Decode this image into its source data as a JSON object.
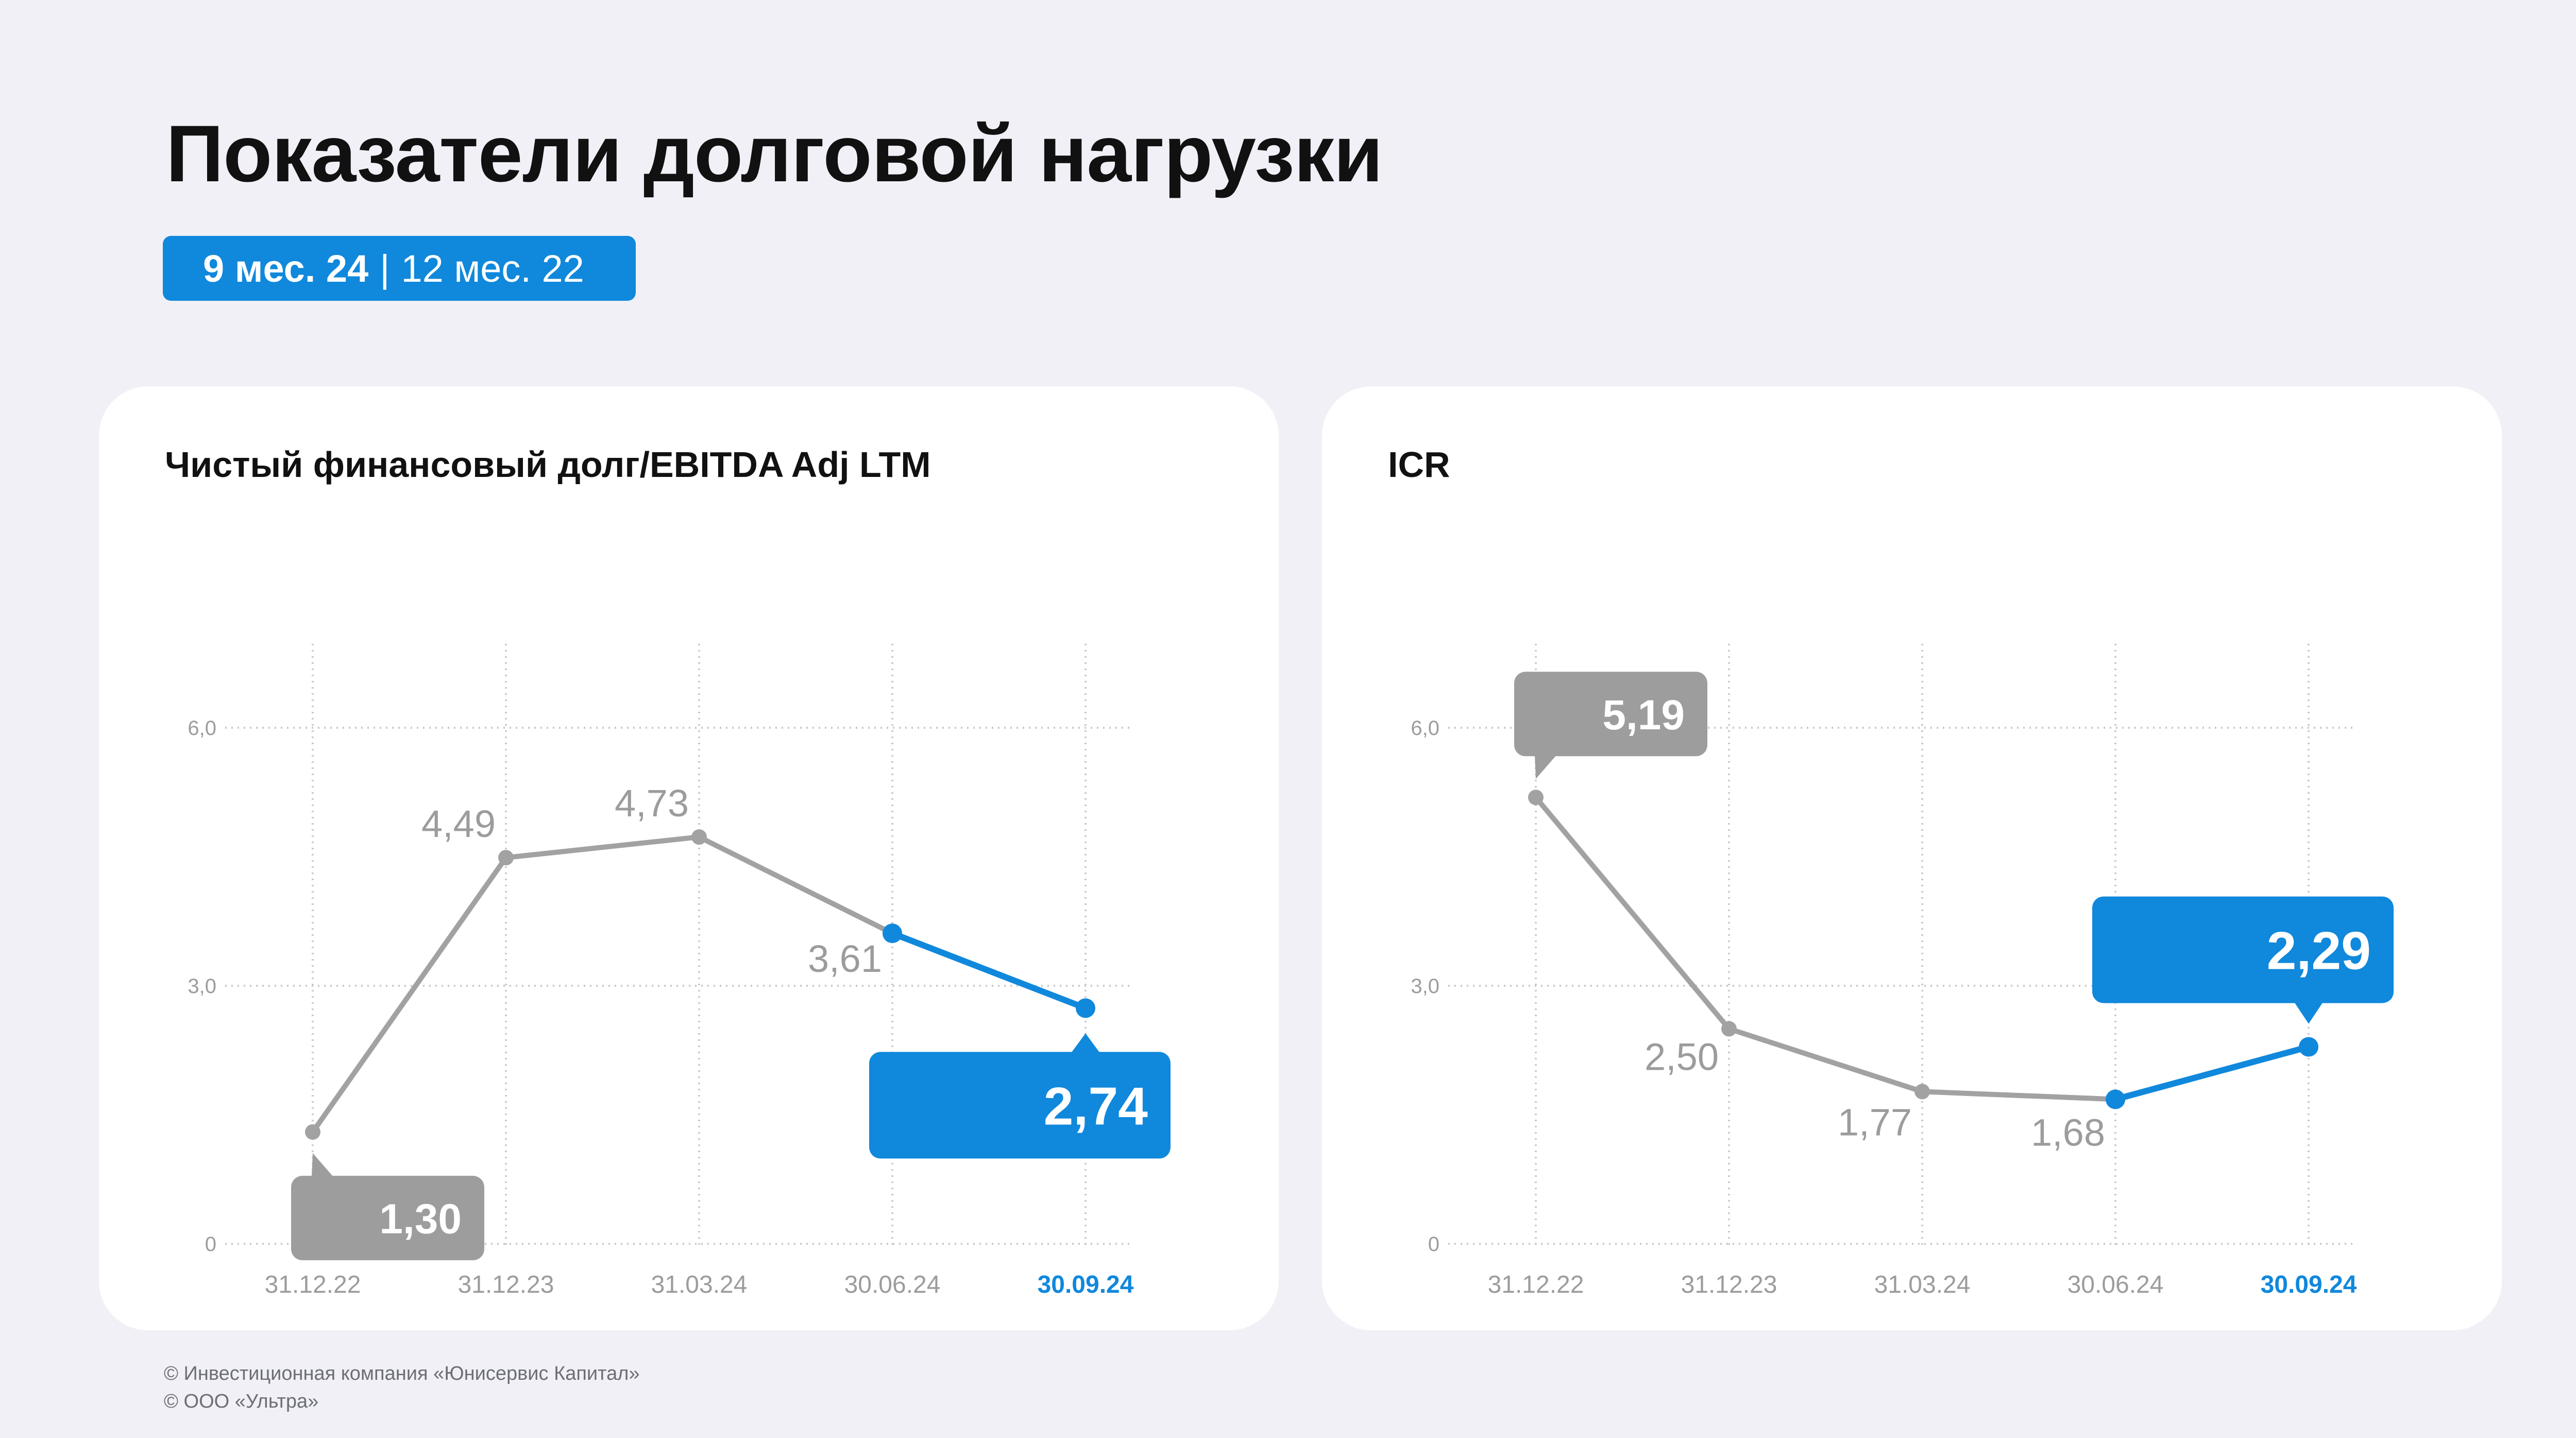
{
  "page": {
    "title": "Показатели долговой нагрузки",
    "period_current": "9 мес. 24",
    "period_separator": "|",
    "period_previous": "12 мес. 22"
  },
  "colors": {
    "background": "#f0f0f6",
    "accent_blue": "#1088dc",
    "line_gray": "#a2a2a2",
    "label_gray": "#9c9c9c",
    "callout_gray": "#9d9d9d",
    "grid": "#c9c9cf"
  },
  "footer": {
    "line1": "© Инвестиционная компания «Юнисервис Капитал»",
    "line2": "© ООО «Ультра»"
  },
  "chart_data": [
    {
      "type": "line",
      "title": "Чистый финансовый долг/EBITDA Adj LTM",
      "categories": [
        "31.12.22",
        "31.12.23",
        "31.03.24",
        "30.06.24",
        "30.09.24"
      ],
      "values": [
        1.3,
        4.49,
        4.73,
        3.61,
        2.74
      ],
      "value_labels": [
        "1,30",
        "4,49",
        "4,73",
        "3,61",
        "2,74"
      ],
      "yticks": [
        0,
        3.0,
        6.0
      ],
      "ytick_labels": [
        "0",
        "3,0",
        "6,0"
      ],
      "ylim": [
        0,
        7.0
      ],
      "xlabel": "",
      "ylabel": "",
      "grid": true,
      "highlighted_category": "30.09.24",
      "callouts": [
        {
          "index": 0,
          "style": "gray",
          "position": "below"
        },
        {
          "index": 4,
          "style": "blue",
          "position": "below"
        }
      ],
      "blue_segment_from_index": 3
    },
    {
      "type": "line",
      "title": "ICR",
      "categories": [
        "31.12.22",
        "31.12.23",
        "31.03.24",
        "30.06.24",
        "30.09.24"
      ],
      "values": [
        5.19,
        2.5,
        1.77,
        1.68,
        2.29
      ],
      "value_labels": [
        "5,19",
        "2,50",
        "1,77",
        "1,68",
        "2,29"
      ],
      "yticks": [
        0,
        3.0,
        6.0
      ],
      "ytick_labels": [
        "0",
        "3,0",
        "6,0"
      ],
      "ylim": [
        0,
        7.0
      ],
      "xlabel": "",
      "ylabel": "",
      "grid": true,
      "highlighted_category": "30.09.24",
      "callouts": [
        {
          "index": 0,
          "style": "gray",
          "position": "above"
        },
        {
          "index": 4,
          "style": "blue",
          "position": "above"
        }
      ],
      "blue_segment_from_index": 3
    }
  ]
}
